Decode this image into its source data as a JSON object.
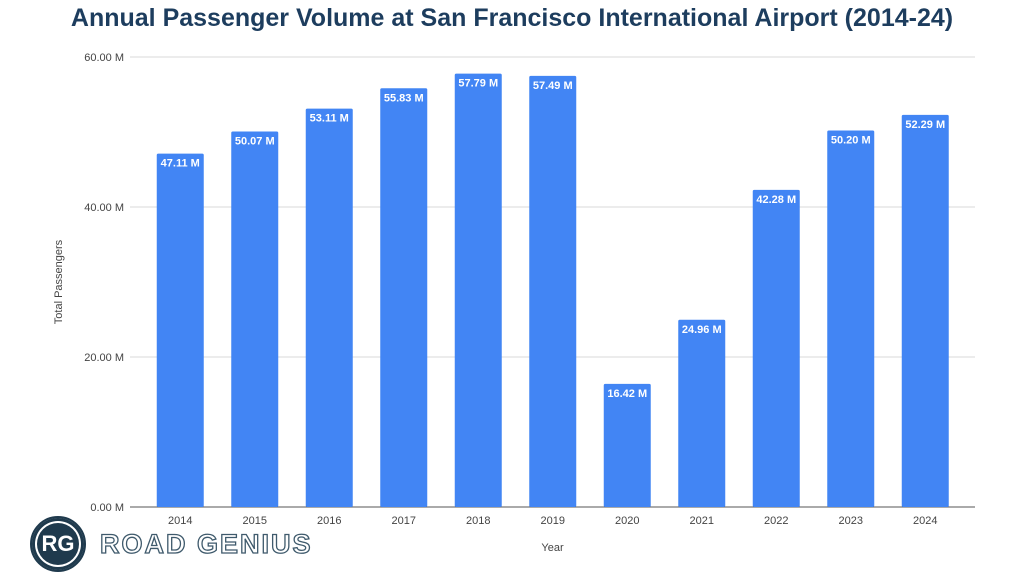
{
  "chart_data": {
    "type": "bar",
    "title": "Annual Passenger Volume at San Francisco International Airport (2014-24)",
    "xlabel": "Year",
    "ylabel": "Total Passengers",
    "categories": [
      "2014",
      "2015",
      "2016",
      "2017",
      "2018",
      "2019",
      "2020",
      "2021",
      "2022",
      "2023",
      "2024"
    ],
    "values": [
      47.11,
      50.07,
      53.11,
      55.83,
      57.79,
      57.49,
      16.42,
      24.96,
      42.28,
      50.2,
      52.29
    ],
    "data_labels": [
      "47.11 M",
      "50.07 M",
      "53.11 M",
      "55.83 M",
      "57.79 M",
      "57.49 M",
      "16.42 M",
      "24.96 M",
      "42.28 M",
      "50.20 M",
      "52.29 M"
    ],
    "ylim": [
      0,
      60
    ],
    "yticks": [
      0,
      20,
      40,
      60
    ],
    "ytick_labels": [
      "0.00 M",
      "20.00 M",
      "40.00 M",
      "60.00 M"
    ],
    "grid": true,
    "legend": "none",
    "bar_color": "#4285f4"
  },
  "logo": {
    "mark": "RG",
    "text": "ROAD GENIUS"
  }
}
